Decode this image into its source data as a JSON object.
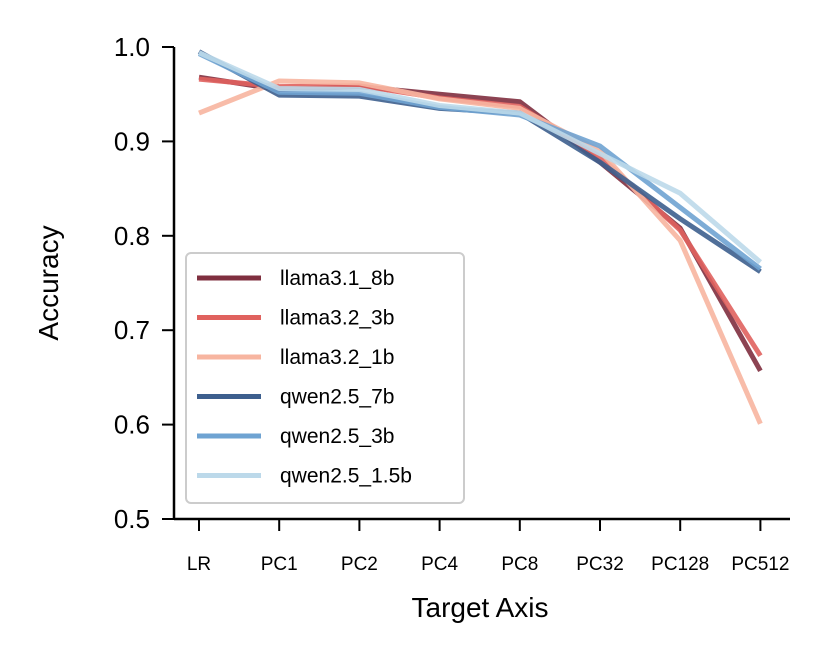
{
  "chart_data": {
    "type": "line",
    "title": "",
    "xlabel": "Target Axis",
    "ylabel": "Accuracy",
    "categories": [
      "LR",
      "PC1",
      "PC2",
      "PC4",
      "PC8",
      "PC32",
      "PC128",
      "PC512"
    ],
    "ylim": [
      0.5,
      1.0
    ],
    "yticks": [
      "0.5",
      "0.6",
      "0.7",
      "0.8",
      "0.9",
      "1.0"
    ],
    "legend_position": "lower-left",
    "grid": false,
    "series": [
      {
        "name": "llama3.1_8b",
        "color": "#7f2f3f",
        "values": [
          0.968,
          0.955,
          0.958,
          0.95,
          0.942,
          0.878,
          0.808,
          0.657
        ]
      },
      {
        "name": "llama3.2_3b",
        "color": "#e0625e",
        "values": [
          0.966,
          0.958,
          0.959,
          0.946,
          0.937,
          0.884,
          0.806,
          0.673
        ]
      },
      {
        "name": "llama3.2_1b",
        "color": "#f7b5a0",
        "values": [
          0.93,
          0.964,
          0.962,
          0.945,
          0.935,
          0.89,
          0.795,
          0.601
        ]
      },
      {
        "name": "qwen2.5_7b",
        "color": "#3d5f8e",
        "values": [
          0.995,
          0.949,
          0.948,
          0.935,
          0.93,
          0.878,
          0.818,
          0.762
        ]
      },
      {
        "name": "qwen2.5_3b",
        "color": "#6fa3d2",
        "values": [
          0.993,
          0.952,
          0.951,
          0.936,
          0.928,
          0.895,
          0.83,
          0.765
        ]
      },
      {
        "name": "qwen2.5_1.5b",
        "color": "#bcd9ea",
        "values": [
          0.994,
          0.956,
          0.955,
          0.938,
          0.93,
          0.887,
          0.845,
          0.772
        ]
      }
    ]
  }
}
